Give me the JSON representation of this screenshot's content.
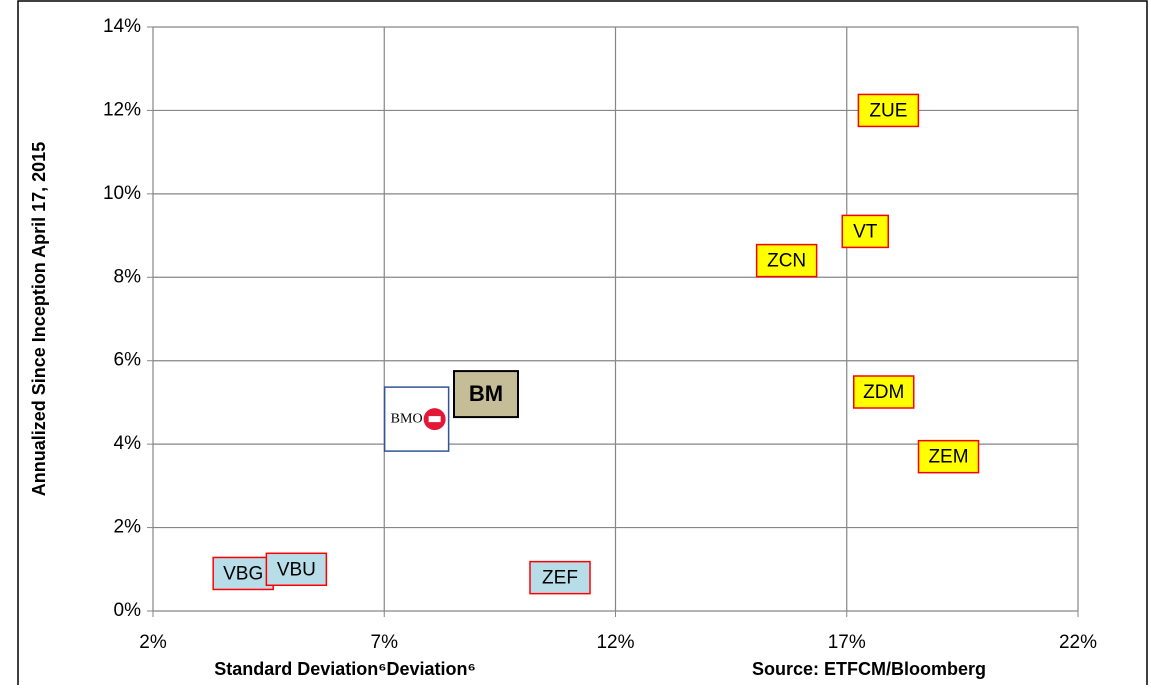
{
  "chart_data": {
    "type": "scatter",
    "x_label": "Standard Deviation⁶Deviation⁶",
    "y_label": "Annualized Since Inception April 17, 2015",
    "source": "Source: ETFCM/Bloomberg",
    "xlim": [
      2,
      22
    ],
    "xticks": [
      {
        "value": 2,
        "label": "2%"
      },
      {
        "value": 7,
        "label": "7%"
      },
      {
        "value": 12,
        "label": "12%"
      },
      {
        "value": 17,
        "label": "17%"
      },
      {
        "value": 22,
        "label": "22%"
      }
    ],
    "ylim": [
      0,
      14
    ],
    "yticks": [
      {
        "value": 0,
        "label": "0%"
      },
      {
        "value": 2,
        "label": "2%"
      },
      {
        "value": 4,
        "label": "4%"
      },
      {
        "value": 6,
        "label": "6%"
      },
      {
        "value": 8,
        "label": "8%"
      },
      {
        "value": 10,
        "label": "10%"
      },
      {
        "value": 12,
        "label": "12%"
      },
      {
        "value": 14,
        "label": "14%"
      }
    ],
    "grid": true,
    "points": [
      {
        "label": "ZUE",
        "x": 17.9,
        "y": 12.0,
        "fill": "#ffff00",
        "stroke": "#ff0000"
      },
      {
        "label": "VT",
        "x": 17.4,
        "y": 9.1,
        "fill": "#ffff00",
        "stroke": "#ff0000"
      },
      {
        "label": "ZCN",
        "x": 15.7,
        "y": 8.4,
        "fill": "#ffff00",
        "stroke": "#ff0000"
      },
      {
        "label": "ZDM",
        "x": 17.8,
        "y": 5.25,
        "fill": "#ffff00",
        "stroke": "#ff0000"
      },
      {
        "label": "ZEM",
        "x": 19.2,
        "y": 3.7,
        "fill": "#ffff00",
        "stroke": "#ff0000"
      },
      {
        "label": "BM",
        "x": 9.2,
        "y": 5.2,
        "fill": "#c4bd97",
        "stroke": "#000000"
      },
      {
        "label": "BMO",
        "x": 7.7,
        "y": 4.6,
        "fill": "#ffffff",
        "stroke": "#2f5597"
      },
      {
        "label": "VBG",
        "x": 3.95,
        "y": 0.9,
        "fill": "#b7dde8",
        "stroke": "#ff0000"
      },
      {
        "label": "VBU",
        "x": 5.1,
        "y": 1.0,
        "fill": "#b7dde8",
        "stroke": "#ff0000"
      },
      {
        "label": "ZEF",
        "x": 10.8,
        "y": 0.8,
        "fill": "#b7dde8",
        "stroke": "#ff0000"
      }
    ]
  }
}
